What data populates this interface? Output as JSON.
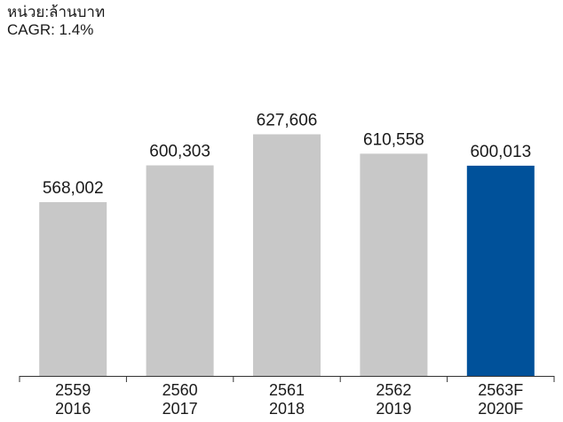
{
  "chart_data": {
    "type": "bar",
    "unit_label": "หน่วย:ล้านบาท",
    "cagr_label": "CAGR: 1.4%",
    "categories": [
      {
        "thai_year": "2559",
        "year": "2016"
      },
      {
        "thai_year": "2560",
        "year": "2017"
      },
      {
        "thai_year": "2561",
        "year": "2018"
      },
      {
        "thai_year": "2562",
        "year": "2019"
      },
      {
        "thai_year": "2563F",
        "year": "2020F"
      }
    ],
    "values": [
      568002,
      600303,
      627606,
      610558,
      600013
    ],
    "value_labels": [
      "568,002",
      "600,303",
      "627,606",
      "610,558",
      "600,013"
    ],
    "bar_colors": [
      "#c8c8c8",
      "#c8c8c8",
      "#c8c8c8",
      "#c8c8c8",
      "#00519a"
    ],
    "highlighted_index": 4,
    "grid": false,
    "legend": "none"
  }
}
